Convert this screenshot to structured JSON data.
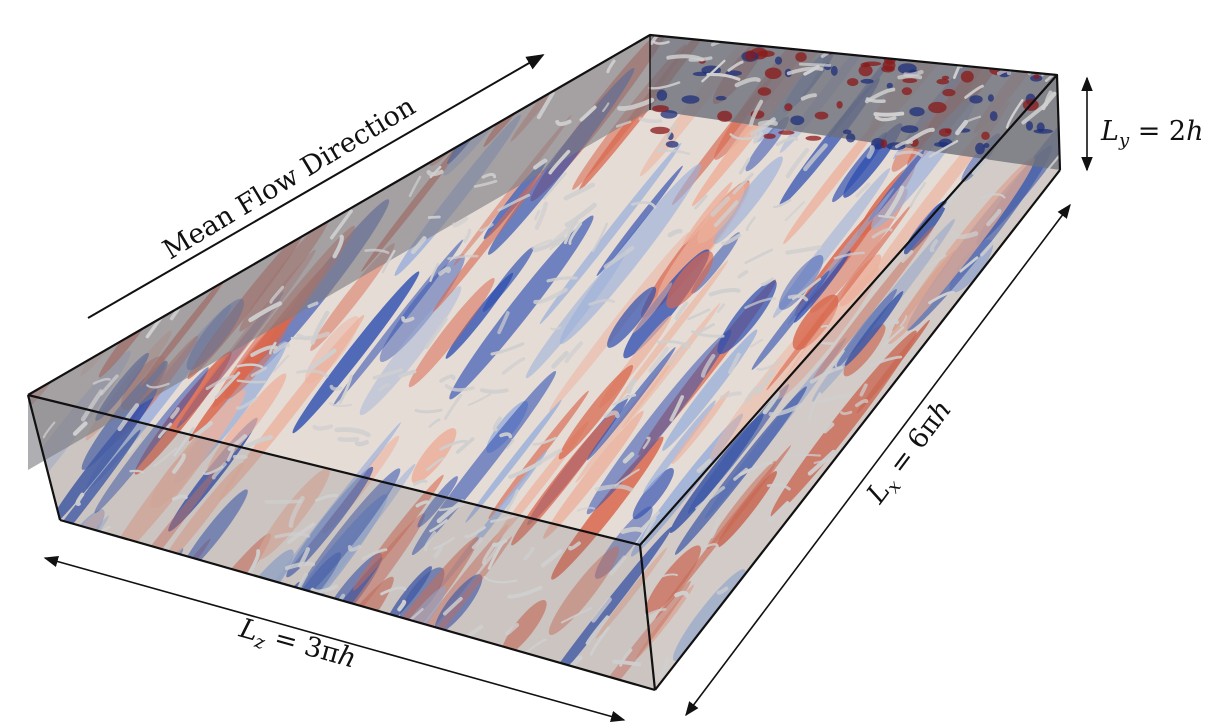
{
  "labels": {
    "flow_direction": "Mean Flow Direction",
    "ly_var": "L",
    "ly_sub": "y",
    "ly_eq": " = 2",
    "ly_h": "h",
    "lx_var": "L",
    "lx_sub": "x",
    "lx_eq": " = 6π",
    "lx_h": "h",
    "lz_var": "L",
    "lz_sub": "z",
    "lz_eq": " = 3π",
    "lz_h": "h"
  },
  "colors": {
    "warm": "#d9674d",
    "warm_light": "#ecb29d",
    "cool": "#3050b0",
    "cool_light": "#9bb0da",
    "neutral": "#e6dcd6",
    "side_wall": "#7d7d85",
    "vortex": "#cfcfcf",
    "frame": "#111111"
  }
}
